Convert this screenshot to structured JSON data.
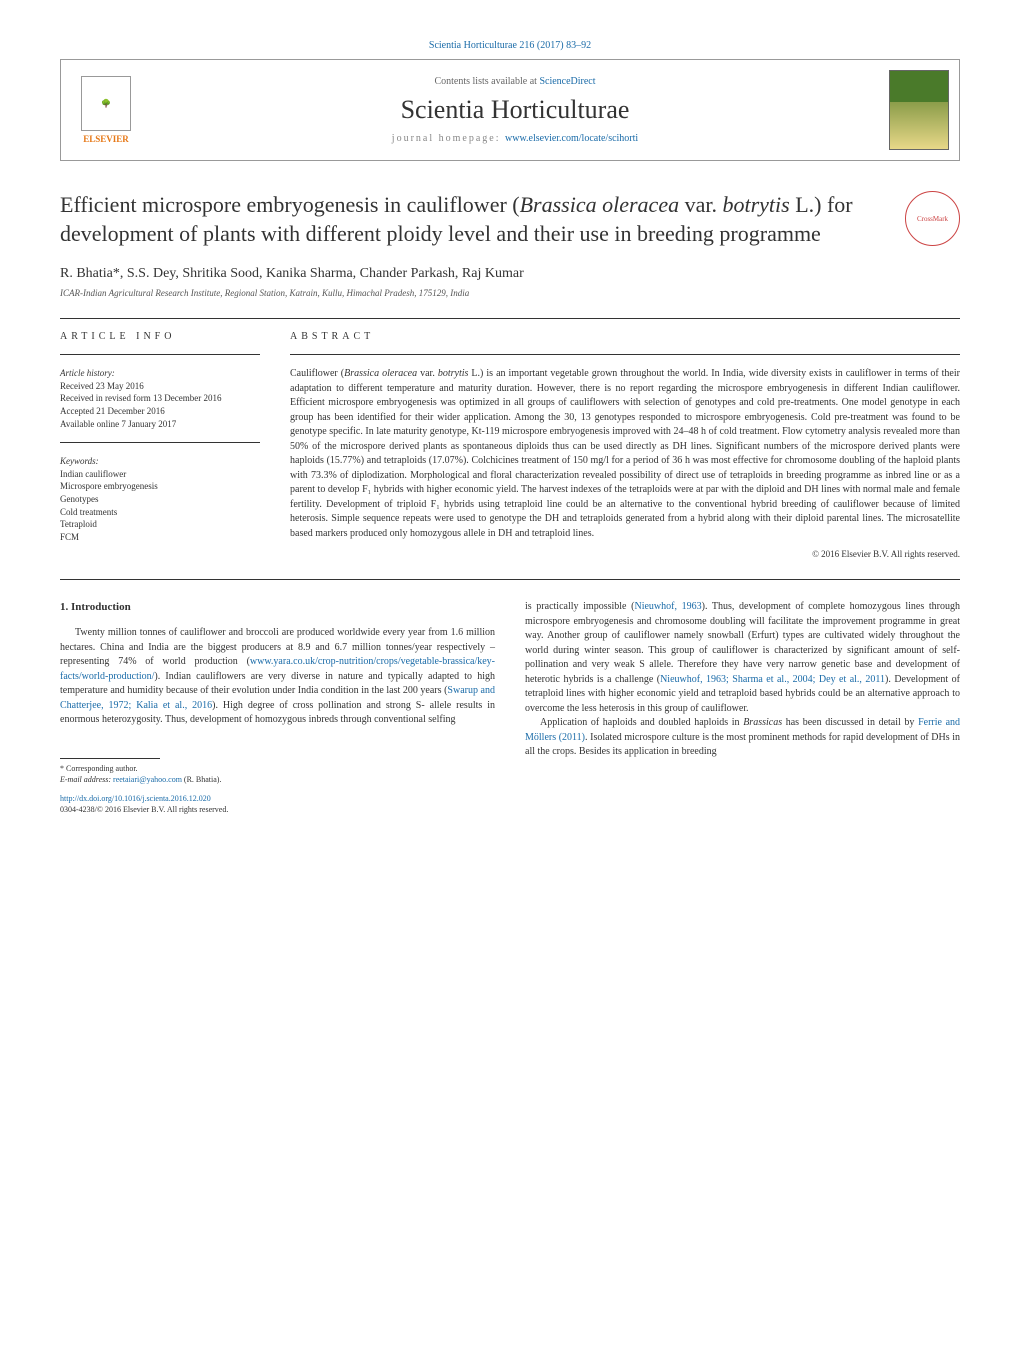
{
  "journal_ref": "Scientia Horticulturae 216 (2017) 83–92",
  "header": {
    "contents_text": "Contents lists available at ",
    "sciencedirect": "ScienceDirect",
    "journal_name": "Scientia Horticulturae",
    "homepage_label": "journal homepage: ",
    "homepage_url": "www.elsevier.com/locate/scihorti",
    "elsevier": "ELSEVIER",
    "crossmark": "CrossMark"
  },
  "title_part1": "Efficient microspore embryogenesis in cauliflower (",
  "title_italic1": "Brassica oleracea",
  "title_part2": " var. ",
  "title_italic2": "botrytis",
  "title_part3": " L.) for development of plants with different ploidy level and their use in breeding programme",
  "authors": "R. Bhatia*, S.S. Dey, Shritika Sood, Kanika Sharma, Chander Parkash, Raj Kumar",
  "affiliation": "ICAR-Indian Agricultural Research Institute, Regional Station, Katrain, Kullu, Himachal Pradesh, 175129, India",
  "article_info": {
    "heading": "ARTICLE INFO",
    "history_label": "Article history:",
    "received": "Received 23 May 2016",
    "revised": "Received in revised form 13 December 2016",
    "accepted": "Accepted 21 December 2016",
    "online": "Available online 7 January 2017",
    "keywords_label": "Keywords:",
    "keywords": [
      "Indian cauliflower",
      "Microspore embryogenesis",
      "Genotypes",
      "Cold treatments",
      "Tetraploid",
      "FCM"
    ]
  },
  "abstract": {
    "heading": "ABSTRACT",
    "text_p1": "Cauliflower (",
    "text_i1": "Brassica oleracea",
    "text_p2": " var. ",
    "text_i2": "botrytis",
    "text_p3": " L.) is an important vegetable grown throughout the world. In India, wide diversity exists in cauliflower in terms of their adaptation to different temperature and maturity duration. However, there is no report regarding the microspore embryogenesis in different Indian cauliflower. Efficient microspore embryogenesis was optimized in all groups of cauliflowers with selection of genotypes and cold pre-treatments. One model genotype in each group has been identified for their wider application. Among the 30, 13 genotypes responded to microspore embryogenesis. Cold pre-treatment was found to be genotype specific. In late maturity genotype, Kt-119 microspore embryogenesis improved with 24–48 h of cold treatment. Flow cytometry analysis revealed more than 50% of the microspore derived plants as spontaneous diploids thus can be used directly as DH lines. Significant numbers of the microspore derived plants were haploids (15.77%) and tetraploids (17.07%). Colchicines treatment of 150 mg/l for a period of 36 h was most effective for chromosome doubling of the haploid plants with 73.3% of diplodization. Morphological and floral characterization revealed possibility of direct use of tetraploids in breeding programme as inbred line or as a parent to develop F₁ hybrids with higher economic yield. The harvest indexes of the tetraploids were at par with the diploid and DH lines with normal male and female fertility. Development of triploid F₁ hybrids using tetraploid line could be an alternative to the conventional hybrid breeding of cauliflower because of limited heterosis. Simple sequence repeats were used to genotype the DH and tetraploids generated from a hybrid along with their diploid parental lines. The microsatellite based markers produced only homozygous allele in DH and tetraploid lines.",
    "copyright": "© 2016 Elsevier B.V. All rights reserved."
  },
  "intro": {
    "heading": "1. Introduction",
    "col1_p1a": "Twenty million tonnes of cauliflower and broccoli are produced worldwide every year from 1.6 million hectares. China and India are the biggest producers at 8.9 and 6.7 million tonnes/year respectively – representing 74% of world production (",
    "col1_link1": "www.yara.co.uk/crop-nutrition/crops/vegetable-brassica/key-facts/world-production/",
    "col1_p1b": "). Indian cauliflowers are very diverse in nature and typically adapted to high temperature and humidity because of their evolution under India condition in the last 200 years (",
    "col1_link2": "Swarup and Chatterjee, 1972; Kalia et al., 2016",
    "col1_p1c": "). High degree of cross pollination and strong S- allele results in enormous heterozygosity. Thus, development of homozygous inbreds through conventional selfing",
    "col2_p1a": "is practically impossible (",
    "col2_link1": "Nieuwhof, 1963",
    "col2_p1b": "). Thus, development of complete homozygous lines through microspore embryogenesis and chromosome doubling will facilitate the improvement programme in great way. Another group of cauliflower namely snowball (Erfurt) types are cultivated widely throughout the world during winter season. This group of cauliflower is characterized by significant amount of self-pollination and very weak S allele. Therefore they have very narrow genetic base and development of heterotic hybrids is a challenge (",
    "col2_link2": "Nieuwhof, 1963; Sharma et al., 2004; Dey et al., 2011",
    "col2_p1c": "). Development of tetraploid lines with higher economic yield and tetraploid based hybrids could be an alternative approach to overcome the less heterosis in this group of cauliflower.",
    "col2_p2a": "Application of haploids and doubled haploids in ",
    "col2_i1": "Brassicas",
    "col2_p2b": " has been discussed in detail by ",
    "col2_link3": "Ferrie and Möllers (2011)",
    "col2_p2c": ". Isolated microspore culture is the most prominent methods for rapid development of DHs in all the crops. Besides its application in breeding"
  },
  "footer": {
    "corresponding": "* Corresponding author.",
    "email_label": "E-mail address: ",
    "email": "reetaiari@yahoo.com",
    "email_author": " (R. Bhatia).",
    "doi": "http://dx.doi.org/10.1016/j.scienta.2016.12.020",
    "issn": "0304-4238/© 2016 Elsevier B.V. All rights reserved."
  }
}
